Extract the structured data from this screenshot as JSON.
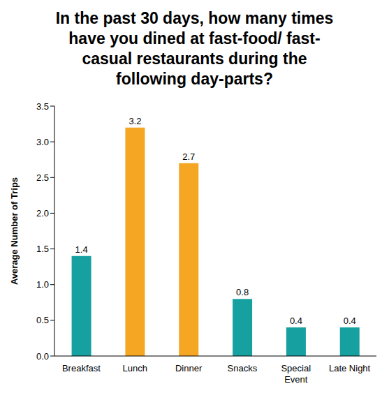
{
  "chart_data": {
    "type": "bar",
    "title": "In the past 30 days, how many times have you dined at fast-food/ fast-casual restaurants during the following day-parts?",
    "ylabel": "Average Number of Trips",
    "categories": [
      "Breakfast",
      "Lunch",
      "Dinner",
      "Snacks",
      "Special Event",
      "Late Night"
    ],
    "values": [
      1.4,
      3.2,
      2.7,
      0.8,
      0.4,
      0.4
    ],
    "colors": [
      "#17a0a0",
      "#f5a623",
      "#f5a623",
      "#17a0a0",
      "#17a0a0",
      "#17a0a0"
    ],
    "ylim": [
      0,
      3.5
    ],
    "yticks": [
      {
        "value": 0,
        "label": "0.0"
      },
      0.5,
      {
        "value": 1,
        "label": "1.0"
      },
      1.5,
      {
        "value": 2,
        "label": "2.0"
      },
      2.5,
      {
        "value": 3,
        "label": "3.0"
      },
      3.5
    ],
    "grid": false,
    "data_labels": true
  }
}
